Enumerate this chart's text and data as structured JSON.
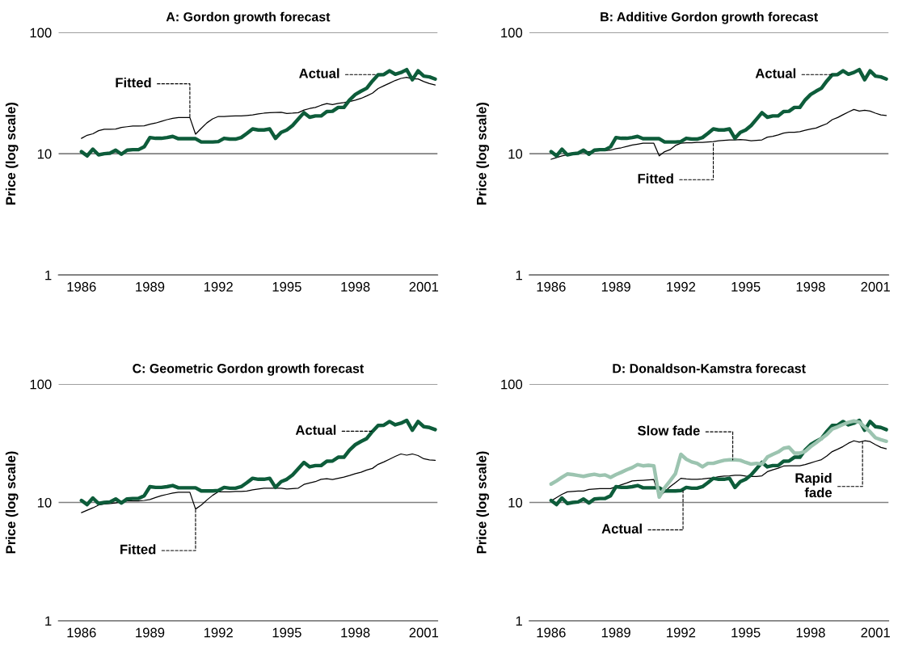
{
  "chart_data": [
    {
      "type": "line",
      "title": "A: Gordon growth forecast",
      "ylabel": "Price (log scale)",
      "log": true,
      "grid": "y",
      "x": [
        1986,
        1986.25,
        1986.5,
        1986.75,
        1987,
        1987.25,
        1987.5,
        1987.75,
        1988,
        1988.25,
        1988.5,
        1988.75,
        1989,
        1989.25,
        1989.5,
        1989.75,
        1990,
        1990.25,
        1990.5,
        1990.75,
        1991,
        1991.25,
        1991.5,
        1991.75,
        1992,
        1992.25,
        1992.5,
        1992.75,
        1993,
        1993.25,
        1993.5,
        1993.75,
        1994,
        1994.25,
        1994.5,
        1994.75,
        1995,
        1995.25,
        1995.5,
        1995.75,
        1996,
        1996.25,
        1996.5,
        1996.75,
        1997,
        1997.25,
        1997.5,
        1997.75,
        1998,
        1998.25,
        1998.5,
        1998.75,
        1999,
        1999.25,
        1999.5,
        1999.75,
        2000,
        2000.25,
        2000.5,
        2000.75,
        2001,
        2001.25,
        2001.5
      ],
      "xlim": [
        1985,
        2001.6
      ],
      "xticks": [
        1986,
        1989,
        1992,
        1995,
        1998,
        2001
      ],
      "ylim": [
        1,
        100
      ],
      "yticks": [
        1,
        10,
        100
      ],
      "series": [
        {
          "color": "#000000",
          "values": [
            13.4,
            14.2,
            14.6,
            15.5,
            15.9,
            15.9,
            16.0,
            16.5,
            16.7,
            16.9,
            16.9,
            17.0,
            17.5,
            17.9,
            18.5,
            19.1,
            19.6,
            19.9,
            19.9,
            19.9,
            14.5,
            16.2,
            18.0,
            19.4,
            20.3,
            20.3,
            20.4,
            20.5,
            20.5,
            20.7,
            20.9,
            21.3,
            21.6,
            21.8,
            21.9,
            22.0,
            21.5,
            21.6,
            21.8,
            22.9,
            23.6,
            24.1,
            25.1,
            25.9,
            25.4,
            26.0,
            26.4,
            26.9,
            27.7,
            28.6,
            30.0,
            31.6,
            34.5,
            36.3,
            38.2,
            40.2,
            41.8,
            42.7,
            41.4,
            41.4,
            39.4,
            37.9,
            36.9
          ]
        },
        {
          "color": "#0d5c3a",
          "values": [
            10.4,
            9.6,
            10.9,
            9.8,
            10.0,
            10.1,
            10.7,
            9.9,
            10.7,
            10.8,
            10.8,
            11.4,
            13.6,
            13.4,
            13.4,
            13.6,
            13.9,
            13.3,
            13.3,
            13.3,
            13.3,
            12.5,
            12.5,
            12.5,
            12.6,
            13.4,
            13.2,
            13.2,
            13.6,
            14.7,
            16.0,
            15.7,
            15.7,
            16.0,
            13.4,
            15.0,
            15.7,
            17.1,
            19.3,
            21.8,
            20.0,
            20.5,
            20.5,
            22.3,
            22.4,
            24.1,
            24.1,
            27.8,
            30.8,
            32.8,
            34.7,
            39.8,
            44.8,
            45.0,
            48.3,
            45.3,
            46.8,
            49.4,
            40.8,
            48.3,
            43.7,
            43.0,
            41.3
          ]
        }
      ],
      "annotations": [
        {
          "text": "Fitted",
          "x": 1990.75,
          "y": 19.9
        },
        {
          "text": "Actual",
          "x": 1998.9,
          "y": 45
        }
      ]
    },
    {
      "type": "line",
      "title": "B: Additive Gordon growth forecast",
      "ylabel": "Price (log scale)",
      "log": true,
      "grid": "y",
      "x": [
        1986,
        1986.25,
        1986.5,
        1986.75,
        1987,
        1987.25,
        1987.5,
        1987.75,
        1988,
        1988.25,
        1988.5,
        1988.75,
        1989,
        1989.25,
        1989.5,
        1989.75,
        1990,
        1990.25,
        1990.5,
        1990.75,
        1991,
        1991.25,
        1991.5,
        1991.75,
        1992,
        1992.25,
        1992.5,
        1992.75,
        1993,
        1993.25,
        1993.5,
        1993.75,
        1994,
        1994.25,
        1994.5,
        1994.75,
        1995,
        1995.25,
        1995.5,
        1995.75,
        1996,
        1996.25,
        1996.5,
        1996.75,
        1997,
        1997.25,
        1997.5,
        1997.75,
        1998,
        1998.25,
        1998.5,
        1998.75,
        1999,
        1999.25,
        1999.5,
        1999.75,
        2000,
        2000.25,
        2000.5,
        2000.75,
        2001,
        2001.25,
        2001.5
      ],
      "xlim": [
        1985,
        2001.6
      ],
      "xticks": [
        1986,
        1989,
        1992,
        1995,
        1998,
        2001
      ],
      "ylim": [
        1,
        100
      ],
      "yticks": [
        1,
        10,
        100
      ],
      "series": [
        {
          "color": "#000000",
          "values": [
            9.0,
            9.3,
            9.6,
            9.8,
            10.1,
            10.2,
            10.3,
            10.4,
            10.5,
            10.6,
            10.6,
            10.7,
            11.0,
            11.2,
            11.5,
            11.8,
            12.0,
            12.2,
            12.2,
            12.2,
            9.6,
            10.4,
            10.8,
            11.7,
            12.2,
            12.3,
            12.3,
            12.4,
            12.4,
            12.5,
            12.6,
            12.8,
            12.9,
            13.0,
            13.0,
            13.1,
            13.0,
            12.8,
            12.9,
            13.0,
            13.7,
            13.9,
            14.3,
            14.8,
            15.0,
            15.0,
            15.2,
            15.6,
            16.0,
            16.3,
            17.0,
            17.7,
            19.1,
            19.9,
            21.0,
            22.1,
            23.2,
            22.5,
            22.8,
            22.5,
            21.6,
            20.9,
            20.7
          ]
        },
        {
          "color": "#0d5c3a",
          "values": [
            10.4,
            9.6,
            10.9,
            9.8,
            10.0,
            10.1,
            10.7,
            9.9,
            10.7,
            10.8,
            10.8,
            11.4,
            13.6,
            13.4,
            13.4,
            13.6,
            13.9,
            13.3,
            13.3,
            13.3,
            13.3,
            12.5,
            12.5,
            12.5,
            12.6,
            13.4,
            13.2,
            13.2,
            13.6,
            14.7,
            16.0,
            15.7,
            15.7,
            16.0,
            13.4,
            15.0,
            15.7,
            17.1,
            19.3,
            21.8,
            20.0,
            20.5,
            20.5,
            22.3,
            22.4,
            24.1,
            24.1,
            27.8,
            30.8,
            32.8,
            34.7,
            39.8,
            44.8,
            45.0,
            48.3,
            45.3,
            46.8,
            49.4,
            40.8,
            48.3,
            43.7,
            43.0,
            41.3
          ]
        }
      ],
      "annotations": [
        {
          "text": "Fitted",
          "x": 1993.5,
          "y": 12.6
        },
        {
          "text": "Actual",
          "x": 1999.0,
          "y": 45
        }
      ]
    },
    {
      "type": "line",
      "title": "C: Geometric Gordon growth forecast",
      "ylabel": "Price (log scale)",
      "log": true,
      "grid": "y",
      "x": [
        1986,
        1986.25,
        1986.5,
        1986.75,
        1987,
        1987.25,
        1987.5,
        1987.75,
        1988,
        1988.25,
        1988.5,
        1988.75,
        1989,
        1989.25,
        1989.5,
        1989.75,
        1990,
        1990.25,
        1990.5,
        1990.75,
        1991,
        1991.25,
        1991.5,
        1991.75,
        1992,
        1992.25,
        1992.5,
        1992.75,
        1993,
        1993.25,
        1993.5,
        1993.75,
        1994,
        1994.25,
        1994.5,
        1994.75,
        1995,
        1995.25,
        1995.5,
        1995.75,
        1996,
        1996.25,
        1996.5,
        1996.75,
        1997,
        1997.25,
        1997.5,
        1997.75,
        1998,
        1998.25,
        1998.5,
        1998.75,
        1999,
        1999.25,
        1999.5,
        1999.75,
        2000,
        2000.25,
        2000.5,
        2000.75,
        2001,
        2001.25,
        2001.5
      ],
      "xlim": [
        1985,
        2001.6
      ],
      "xticks": [
        1986,
        1989,
        1992,
        1995,
        1998,
        2001
      ],
      "ylim": [
        1,
        100
      ],
      "yticks": [
        1,
        10,
        100
      ],
      "series": [
        {
          "color": "#000000",
          "values": [
            8.2,
            8.6,
            9.0,
            9.5,
            9.7,
            9.8,
            9.9,
            10.1,
            10.3,
            10.3,
            10.3,
            10.4,
            10.6,
            11.0,
            11.4,
            11.7,
            12.0,
            12.2,
            12.2,
            12.2,
            8.8,
            9.5,
            10.5,
            11.5,
            12.3,
            12.3,
            12.3,
            12.4,
            12.4,
            12.5,
            12.8,
            13.0,
            13.2,
            13.2,
            13.2,
            13.2,
            13.0,
            13.1,
            13.2,
            14.2,
            14.6,
            15.0,
            15.7,
            15.9,
            15.6,
            16.0,
            16.4,
            16.9,
            17.5,
            18.0,
            18.8,
            19.4,
            21.0,
            22.0,
            23.2,
            24.5,
            25.7,
            25.1,
            25.7,
            24.9,
            23.4,
            22.9,
            22.7
          ]
        },
        {
          "color": "#0d5c3a",
          "values": [
            10.4,
            9.6,
            10.9,
            9.8,
            10.0,
            10.1,
            10.7,
            9.9,
            10.7,
            10.8,
            10.8,
            11.4,
            13.6,
            13.4,
            13.4,
            13.6,
            13.9,
            13.3,
            13.3,
            13.3,
            13.3,
            12.5,
            12.5,
            12.5,
            12.6,
            13.4,
            13.2,
            13.2,
            13.6,
            14.7,
            16.0,
            15.7,
            15.7,
            16.0,
            13.4,
            15.0,
            15.7,
            17.1,
            19.3,
            21.8,
            20.0,
            20.5,
            20.5,
            22.3,
            22.4,
            24.1,
            24.1,
            27.8,
            30.8,
            32.8,
            34.7,
            39.8,
            44.8,
            45.0,
            48.3,
            45.3,
            46.8,
            49.4,
            40.8,
            48.3,
            43.7,
            43.0,
            41.3
          ]
        }
      ],
      "annotations": [
        {
          "text": "Actual",
          "x": 1998.75,
          "y": 40
        },
        {
          "text": "Fitted",
          "x": 1991.0,
          "y": 8.8
        }
      ]
    },
    {
      "type": "line",
      "title": "D: Donaldson-Kamstra forecast",
      "ylabel": "Price (log scale)",
      "log": true,
      "grid": "y",
      "x": [
        1986,
        1986.25,
        1986.5,
        1986.75,
        1987,
        1987.25,
        1987.5,
        1987.75,
        1988,
        1988.25,
        1988.5,
        1988.75,
        1989,
        1989.25,
        1989.5,
        1989.75,
        1990,
        1990.25,
        1990.5,
        1990.75,
        1991,
        1991.25,
        1991.5,
        1991.75,
        1992,
        1992.25,
        1992.5,
        1992.75,
        1993,
        1993.25,
        1993.5,
        1993.75,
        1994,
        1994.25,
        1994.5,
        1994.75,
        1995,
        1995.25,
        1995.5,
        1995.75,
        1996,
        1996.25,
        1996.5,
        1996.75,
        1997,
        1997.25,
        1997.5,
        1997.75,
        1998,
        1998.25,
        1998.5,
        1998.75,
        1999,
        1999.25,
        1999.5,
        1999.75,
        2000,
        2000.25,
        2000.5,
        2000.75,
        2001,
        2001.25,
        2001.5
      ],
      "xlim": [
        1985,
        2001.6
      ],
      "xticks": [
        1986,
        1989,
        1992,
        1995,
        1998,
        2001
      ],
      "ylim": [
        1,
        100
      ],
      "yticks": [
        1,
        10,
        100
      ],
      "series": [
        {
          "color": "#000000",
          "values": [
            10.3,
            11.0,
            11.7,
            12.3,
            12.4,
            12.5,
            12.5,
            12.9,
            13.0,
            13.1,
            13.1,
            13.1,
            13.6,
            14.1,
            14.6,
            15.2,
            15.3,
            15.4,
            15.5,
            15.6,
            11.1,
            12.3,
            13.6,
            14.7,
            16.0,
            15.8,
            15.7,
            15.7,
            15.8,
            16.0,
            16.1,
            16.5,
            16.7,
            16.8,
            17.0,
            17.0,
            16.7,
            16.6,
            16.6,
            16.8,
            18.2,
            18.9,
            19.5,
            20.3,
            20.4,
            20.4,
            20.4,
            20.9,
            21.6,
            22.3,
            23.0,
            24.7,
            26.9,
            28.2,
            29.7,
            31.7,
            33.2,
            32.4,
            33.2,
            32.7,
            30.8,
            29.2,
            28.4
          ]
        },
        {
          "color": "#0d5c3a",
          "values": [
            10.4,
            9.6,
            10.9,
            9.8,
            10.0,
            10.1,
            10.7,
            9.9,
            10.7,
            10.8,
            10.8,
            11.4,
            13.6,
            13.4,
            13.4,
            13.6,
            13.9,
            13.3,
            13.3,
            13.3,
            13.3,
            12.5,
            12.5,
            12.5,
            12.6,
            13.4,
            13.2,
            13.2,
            13.6,
            14.7,
            16.0,
            15.7,
            15.7,
            16.0,
            13.4,
            15.0,
            15.7,
            17.1,
            19.3,
            21.8,
            20.0,
            20.5,
            20.5,
            22.3,
            22.4,
            24.1,
            24.1,
            27.8,
            30.8,
            32.8,
            34.7,
            39.8,
            44.8,
            45.0,
            48.3,
            45.3,
            46.8,
            49.4,
            40.8,
            48.3,
            43.7,
            43.0,
            41.3
          ]
        },
        {
          "color": "#9cc4b0",
          "values": [
            14.3,
            15.2,
            16.3,
            17.4,
            17.2,
            16.9,
            16.6,
            17.0,
            17.3,
            16.9,
            17.1,
            16.3,
            17.2,
            18.0,
            18.9,
            19.7,
            20.9,
            20.4,
            20.6,
            20.4,
            11.1,
            13.3,
            15.2,
            17.5,
            25.5,
            23.2,
            22.0,
            21.4,
            20.0,
            21.4,
            21.4,
            22.1,
            22.7,
            22.9,
            22.9,
            22.7,
            21.8,
            21.1,
            21.4,
            21.1,
            24.2,
            25.5,
            26.7,
            28.7,
            29.3,
            26.1,
            26.1,
            27.0,
            29.6,
            31.9,
            34.7,
            37.5,
            41.8,
            43.5,
            45.6,
            47.6,
            48.8,
            47.8,
            43.5,
            39.5,
            35.2,
            33.9,
            32.9
          ]
        }
      ],
      "annotations": [
        {
          "text": "Slow fade",
          "x": 1994.4,
          "y": 22.9
        },
        {
          "text": "Actual",
          "x": 1992.1,
          "y": 12.6
        },
        {
          "text": "Rapid\nfade",
          "x": 2000.4,
          "y": 32.7
        }
      ]
    }
  ]
}
